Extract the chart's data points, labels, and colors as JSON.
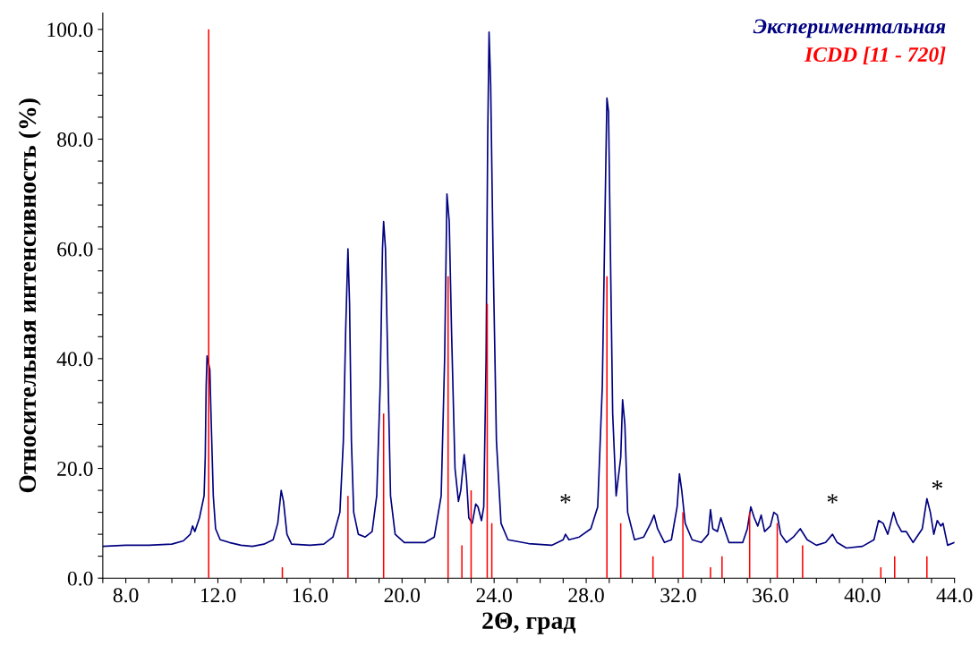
{
  "chart_data": {
    "type": "line",
    "xlabel": "2Θ, град",
    "ylabel": "Относительная интенсивность (%)",
    "xlim": [
      7.0,
      44.0
    ],
    "ylim": [
      0.0,
      103.0
    ],
    "xticks": [
      {
        "value": 7,
        "label": null
      },
      {
        "value": 8,
        "label": "8.0"
      },
      {
        "value": 9,
        "label": null
      },
      {
        "value": 10,
        "label": null
      },
      {
        "value": 11,
        "label": null
      },
      {
        "value": 12,
        "label": "12.0"
      },
      {
        "value": 13,
        "label": null
      },
      {
        "value": 14,
        "label": null
      },
      {
        "value": 15,
        "label": null
      },
      {
        "value": 16,
        "label": "16.0"
      },
      {
        "value": 17,
        "label": null
      },
      {
        "value": 18,
        "label": null
      },
      {
        "value": 19,
        "label": null
      },
      {
        "value": 20,
        "label": "20.0"
      },
      {
        "value": 21,
        "label": null
      },
      {
        "value": 22,
        "label": null
      },
      {
        "value": 23,
        "label": null
      },
      {
        "value": 24,
        "label": "24.0"
      },
      {
        "value": 25,
        "label": null
      },
      {
        "value": 26,
        "label": null
      },
      {
        "value": 27,
        "label": null
      },
      {
        "value": 28,
        "label": "28.0"
      },
      {
        "value": 29,
        "label": null
      },
      {
        "value": 30,
        "label": null
      },
      {
        "value": 31,
        "label": null
      },
      {
        "value": 32,
        "label": "32.0"
      },
      {
        "value": 33,
        "label": null
      },
      {
        "value": 34,
        "label": null
      },
      {
        "value": 35,
        "label": null
      },
      {
        "value": 36,
        "label": "36.0"
      },
      {
        "value": 37,
        "label": null
      },
      {
        "value": 38,
        "label": null
      },
      {
        "value": 39,
        "label": null
      },
      {
        "value": 40,
        "label": "40.0"
      },
      {
        "value": 41,
        "label": null
      },
      {
        "value": 42,
        "label": null
      },
      {
        "value": 43,
        "label": null
      },
      {
        "value": 44,
        "label": "44.0"
      }
    ],
    "yticks": [
      {
        "value": 0,
        "label": "0.0"
      },
      {
        "value": 4,
        "label": null
      },
      {
        "value": 8,
        "label": null
      },
      {
        "value": 12,
        "label": null
      },
      {
        "value": 16,
        "label": null
      },
      {
        "value": 20,
        "label": "20.0"
      },
      {
        "value": 24,
        "label": null
      },
      {
        "value": 28,
        "label": null
      },
      {
        "value": 32,
        "label": null
      },
      {
        "value": 36,
        "label": null
      },
      {
        "value": 40,
        "label": "40.0"
      },
      {
        "value": 44,
        "label": null
      },
      {
        "value": 48,
        "label": null
      },
      {
        "value": 52,
        "label": null
      },
      {
        "value": 56,
        "label": null
      },
      {
        "value": 60,
        "label": "60.0"
      },
      {
        "value": 64,
        "label": null
      },
      {
        "value": 68,
        "label": null
      },
      {
        "value": 72,
        "label": null
      },
      {
        "value": 76,
        "label": null
      },
      {
        "value": 80,
        "label": "80.0"
      },
      {
        "value": 84,
        "label": null
      },
      {
        "value": 88,
        "label": null
      },
      {
        "value": 92,
        "label": null
      },
      {
        "value": 96,
        "label": null
      },
      {
        "value": 100,
        "label": "100.0"
      }
    ],
    "grid": false,
    "legend": "top right",
    "annotations": [
      {
        "text": "*",
        "x": 27.1,
        "y": 8
      },
      {
        "text": "*",
        "x": 38.7,
        "y": 8
      },
      {
        "text": "*",
        "x": 43.25,
        "y": 10.5
      }
    ],
    "series": [
      {
        "name": "Экспериментальная",
        "color": "#000080",
        "x": [
          7.0,
          8,
          9,
          10,
          10.5,
          10.8,
          10.9,
          11.0,
          11.2,
          11.4,
          11.45,
          11.49,
          11.53,
          11.65,
          11.7,
          11.8,
          11.9,
          12.1,
          12.5,
          13,
          13.5,
          14,
          14.4,
          14.6,
          14.75,
          14.85,
          15.0,
          15.2,
          16,
          16.6,
          17.0,
          17.3,
          17.45,
          17.55,
          17.65,
          17.72,
          17.8,
          17.9,
          18.1,
          18.4,
          18.7,
          18.9,
          19.05,
          19.15,
          19.2,
          19.28,
          19.4,
          19.5,
          19.7,
          20.1,
          20.5,
          21,
          21.4,
          21.7,
          21.85,
          21.95,
          22.05,
          22.15,
          22.3,
          22.45,
          22.55,
          22.7,
          22.8,
          22.9,
          23.05,
          23.2,
          23.3,
          23.45,
          23.55,
          23.65,
          23.72,
          23.78,
          23.85,
          23.95,
          24.1,
          24.3,
          24.6,
          25.5,
          26.5,
          27.0,
          27.1,
          27.25,
          27.7,
          28.2,
          28.5,
          28.7,
          28.85,
          28.9,
          28.97,
          29.05,
          29.15,
          29.3,
          29.5,
          29.58,
          29.68,
          29.8,
          30.1,
          30.5,
          30.8,
          30.95,
          31.1,
          31.4,
          31.7,
          31.95,
          32.05,
          32.15,
          32.3,
          32.6,
          33.0,
          33.3,
          33.4,
          33.5,
          33.7,
          33.85,
          34.0,
          34.2,
          34.8,
          35.0,
          35.15,
          35.3,
          35.45,
          35.6,
          35.75,
          36.0,
          36.15,
          36.3,
          36.45,
          36.7,
          37.0,
          37.3,
          37.6,
          38.0,
          38.4,
          38.7,
          38.9,
          39.3,
          40.0,
          40.5,
          40.7,
          40.9,
          41.1,
          41.35,
          41.5,
          41.7,
          41.9,
          42.2,
          42.6,
          42.8,
          42.95,
          43.1,
          43.25,
          43.4,
          43.5,
          43.7,
          44.0
        ],
        "values": [
          5.8,
          6.0,
          6.0,
          6.2,
          6.8,
          8.0,
          9.5,
          8.5,
          11,
          15,
          22,
          35,
          40.5,
          38,
          30,
          15,
          9,
          7,
          6.5,
          6,
          5.8,
          6.2,
          7,
          10,
          16,
          14,
          8,
          6.2,
          6,
          6.2,
          7.5,
          12,
          25,
          45,
          60,
          50,
          25,
          12,
          8,
          7.5,
          8.5,
          15,
          35,
          60,
          65,
          60,
          35,
          15,
          8,
          6.5,
          6.5,
          6.5,
          7.5,
          15,
          40,
          70,
          65,
          45,
          20,
          14,
          16,
          22.5,
          18,
          11,
          10,
          13.5,
          13,
          10.5,
          13,
          40,
          80,
          99.5,
          90,
          60,
          25,
          10,
          7,
          6.3,
          6.0,
          7,
          8,
          7,
          7.5,
          9,
          13,
          35,
          75,
          87.5,
          85,
          60,
          30,
          15,
          22,
          32.5,
          28,
          12,
          7,
          7.5,
          10,
          11.5,
          9,
          6.5,
          7,
          13,
          19,
          16,
          10,
          7,
          6.5,
          8,
          12.5,
          9,
          8.5,
          11,
          9,
          6.5,
          6.5,
          9,
          13,
          11,
          9.5,
          11.5,
          8.5,
          9.5,
          12,
          11.5,
          8,
          6.5,
          7.5,
          9,
          7,
          6,
          6.5,
          8,
          6.5,
          5.5,
          5.8,
          7,
          10.5,
          10,
          8,
          12,
          10,
          8.5,
          8.5,
          6.5,
          9,
          14.5,
          12,
          8,
          10.5,
          9.5,
          10,
          6,
          6.5
        ]
      },
      {
        "name": "ICDD [11 - 720]",
        "type": "bar",
        "color": "#ff0000",
        "x": [
          11.6,
          14.8,
          17.65,
          19.2,
          22.0,
          22.6,
          23.0,
          23.7,
          23.9,
          28.9,
          29.5,
          30.9,
          32.2,
          33.4,
          33.9,
          35.1,
          36.3,
          37.4,
          40.8,
          41.4,
          42.8
        ],
        "values": [
          100,
          2,
          15,
          30,
          55,
          6,
          16,
          50,
          10,
          55,
          10,
          4,
          12,
          2,
          4,
          12,
          10,
          6,
          2,
          4,
          4
        ]
      }
    ]
  }
}
